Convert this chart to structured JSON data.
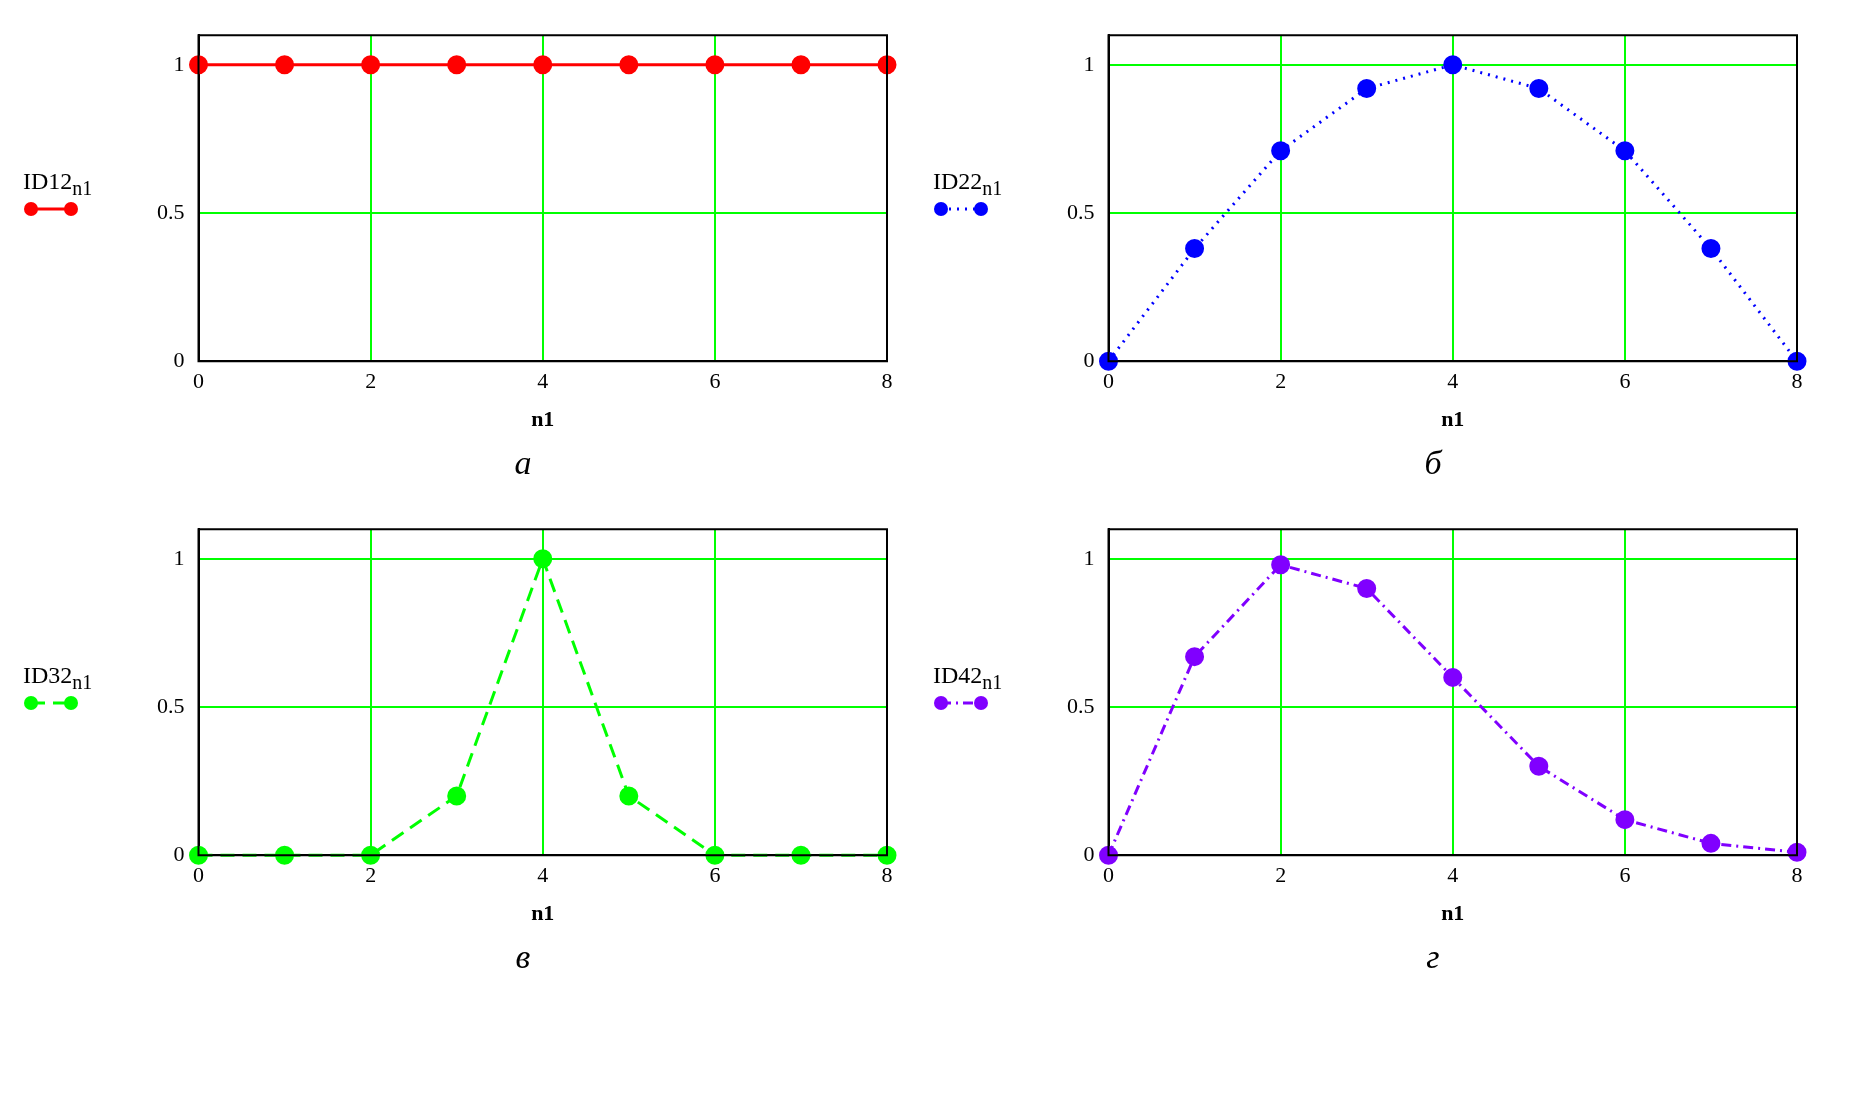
{
  "chart_data": [
    {
      "type": "line",
      "x": [
        0,
        1,
        2,
        3,
        4,
        5,
        6,
        7,
        8
      ],
      "series": [
        {
          "color": "#ff0000",
          "values": [
            1,
            1,
            1,
            1,
            1,
            1,
            1,
            1,
            1
          ]
        }
      ],
      "xlabel": "n1",
      "ylabel": "ID12$_{n1}$",
      "xlim": [
        0,
        8
      ],
      "xticks": [
        0,
        2,
        4,
        6,
        8
      ],
      "ylim": [
        0,
        1.1
      ],
      "yticks": [
        0,
        0.5,
        1
      ],
      "grid": true,
      "marker": "circle",
      "line_style": "solid",
      "annotations": [
        "а"
      ]
    },
    {
      "type": "line",
      "x": [
        0,
        1,
        2,
        3,
        4,
        5,
        6,
        7,
        8
      ],
      "series": [
        {
          "color": "#0000ff",
          "values": [
            0,
            0.38,
            0.71,
            0.92,
            1,
            0.92,
            0.71,
            0.38,
            0
          ]
        }
      ],
      "xlabel": "n1",
      "ylabel": "ID22$_{n1}$",
      "xlim": [
        0,
        8
      ],
      "xticks": [
        0,
        2,
        4,
        6,
        8
      ],
      "ylim": [
        0,
        1.1
      ],
      "yticks": [
        0,
        0.5,
        1
      ],
      "grid": true,
      "marker": "circle",
      "line_style": "dotted",
      "annotations": [
        "б"
      ]
    },
    {
      "type": "line",
      "x": [
        0,
        1,
        2,
        3,
        4,
        5,
        6,
        7,
        8
      ],
      "series": [
        {
          "color": "#00ff00",
          "values": [
            0,
            0,
            0,
            0.2,
            1,
            0.2,
            0,
            0,
            0
          ]
        }
      ],
      "xlabel": "n1",
      "ylabel": "ID32$_{n1}$",
      "xlim": [
        0,
        8
      ],
      "xticks": [
        0,
        2,
        4,
        6,
        8
      ],
      "ylim": [
        0,
        1.1
      ],
      "yticks": [
        0,
        0.5,
        1
      ],
      "grid": true,
      "marker": "circle",
      "line_style": "dashed",
      "annotations": [
        "в"
      ]
    },
    {
      "type": "line",
      "x": [
        0,
        1,
        2,
        3,
        4,
        5,
        6,
        7,
        8
      ],
      "series": [
        {
          "color": "#8000ff",
          "values": [
            0,
            0.67,
            0.98,
            0.9,
            0.6,
            0.3,
            0.12,
            0.04,
            0.01
          ]
        }
      ],
      "xlabel": "n1",
      "ylabel": "ID42$_{n1}$",
      "xlim": [
        0,
        8
      ],
      "xticks": [
        0,
        2,
        4,
        6,
        8
      ],
      "ylim": [
        0,
        1.1
      ],
      "yticks": [
        0,
        0.5,
        1
      ],
      "grid": true,
      "marker": "circle",
      "line_style": "dashdot",
      "annotations": [
        "г"
      ]
    }
  ]
}
